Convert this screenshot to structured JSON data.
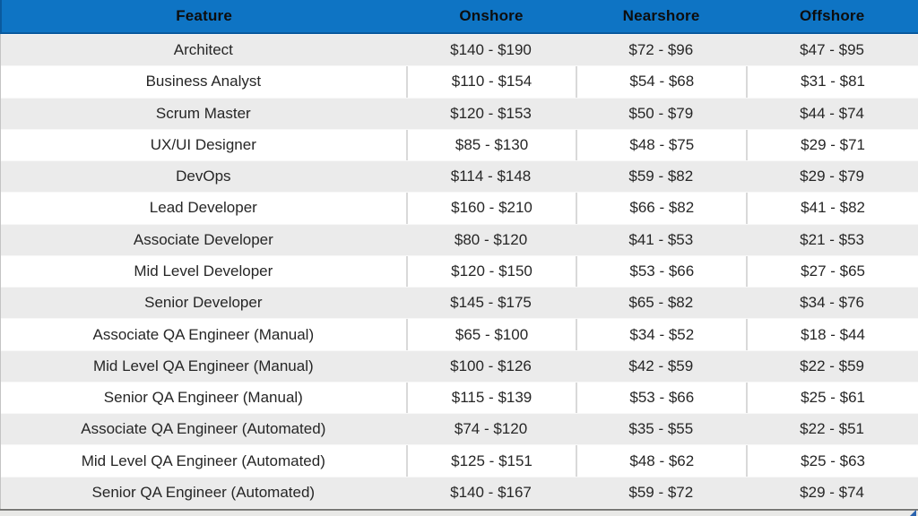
{
  "chart_data": {
    "type": "table",
    "title": "",
    "columns": [
      "Feature",
      "Onshore",
      "Nearshore",
      "Offshore"
    ],
    "rows": [
      [
        "Architect",
        "$140 - $190",
        "$72 - $96",
        "$47 - $95"
      ],
      [
        "Business Analyst",
        "$110 - $154",
        "$54 - $68",
        "$31 - $81"
      ],
      [
        "Scrum Master",
        "$120 - $153",
        "$50 - $79",
        "$44 - $74"
      ],
      [
        "UX/UI Designer",
        "$85 - $130",
        "$48 - $75",
        "$29 - $71"
      ],
      [
        "DevOps",
        "$114 - $148",
        "$59 - $82",
        "$29 - $79"
      ],
      [
        "Lead Developer",
        "$160 - $210",
        "$66 - $82",
        "$41 - $82"
      ],
      [
        "Associate Developer",
        "$80 - $120",
        "$41 - $53",
        "$21 - $53"
      ],
      [
        "Mid Level Developer",
        "$120 - $150",
        "$53 - $66",
        "$27 - $65"
      ],
      [
        "Senior Developer",
        "$145 - $175",
        "$65 - $82",
        "$34 - $76"
      ],
      [
        "Associate QA Engineer (Manual)",
        "$65 - $100",
        "$34 - $52",
        "$18 - $44"
      ],
      [
        "Mid Level QA Engineer (Manual)",
        "$100 - $126",
        "$42 - $59",
        "$22 - $59"
      ],
      [
        "Senior QA Engineer (Manual)",
        "$115 - $139",
        "$53 - $66",
        "$25 - $61"
      ],
      [
        "Associate QA Engineer (Automated)",
        "$74 - $120",
        "$35 - $55",
        "$22 - $51"
      ],
      [
        "Mid Level QA Engineer (Automated)",
        "$125 - $151",
        "$48 - $62",
        "$25 - $63"
      ],
      [
        "Senior QA Engineer (Automated)",
        "$140 - $167",
        "$59 - $72",
        "$29 - $74"
      ]
    ],
    "layout_hints": {
      "header_position": "top",
      "banded_rows": true,
      "first_band": "gray"
    }
  },
  "colors": {
    "header_bg": "#0e74c4",
    "header_border": "#0a5a9e",
    "header_text": "#0d0d0d",
    "row_alt_bg": "#ebebeb",
    "row_bg": "#ffffff",
    "cell_divider": "#d9d9d9",
    "body_text": "#262626",
    "bottom_bar": "#7a7a78",
    "corner_mark": "#2a63ae"
  }
}
